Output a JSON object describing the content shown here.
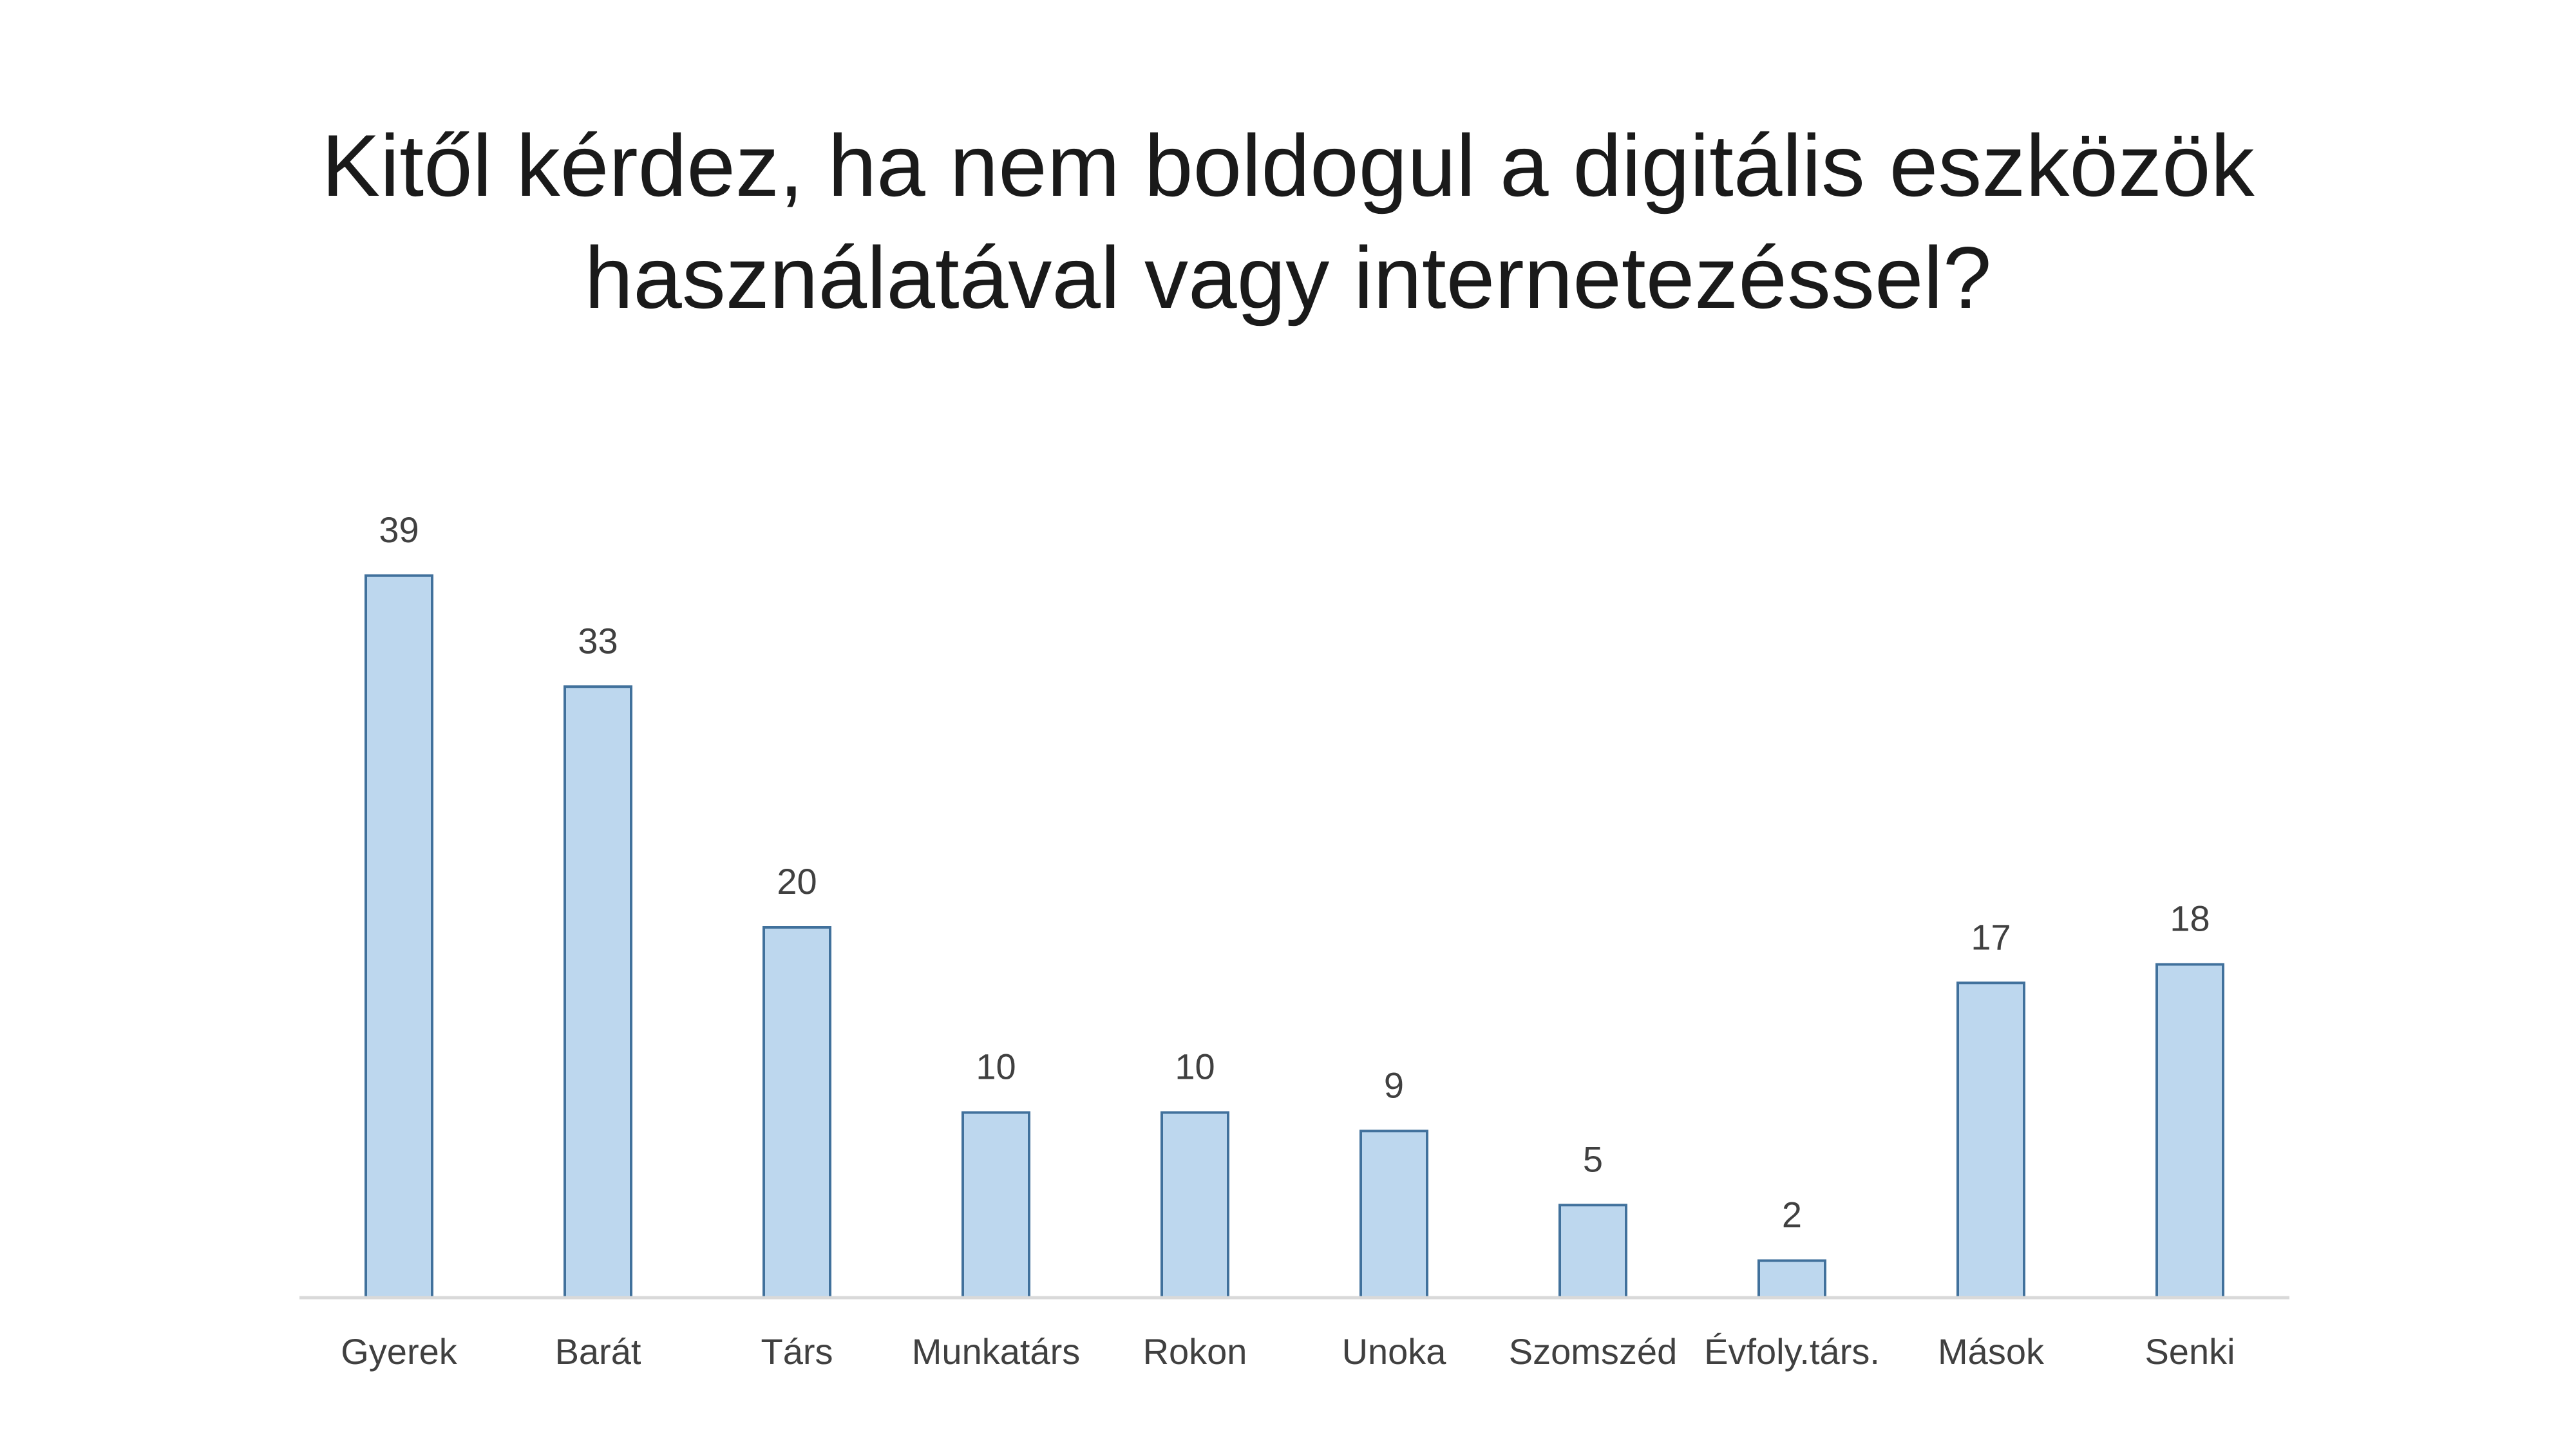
{
  "chart_data": {
    "type": "bar",
    "title": "Kitől kérdez, ha nem boldogul a digitális eszközök használatával vagy internetezéssel?",
    "categories": [
      "Gyerek",
      "Barát",
      "Társ",
      "Munkatárs",
      "Rokon",
      "Unoka",
      "Szomszéd",
      "Évfoly.társ.",
      "Mások",
      "Senki"
    ],
    "values": [
      39,
      33,
      20,
      10,
      10,
      9,
      5,
      2,
      17,
      18
    ],
    "xlabel": "",
    "ylabel": "",
    "ylim": [
      0,
      40
    ],
    "grid": false,
    "legend": "none",
    "data_labels": true,
    "colors": {
      "bar_fill": "#bdd7ee",
      "bar_border": "#41719c",
      "axis": "#d9d9d9",
      "text": "#404040"
    }
  }
}
